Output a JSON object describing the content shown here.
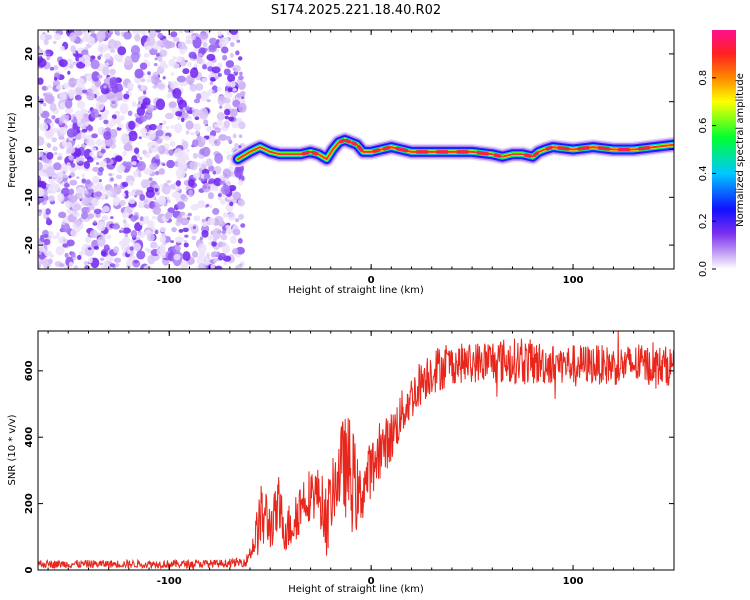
{
  "title": "S174.2025.221.18.40.R02",
  "colors": {
    "snr_line": "#e8261c",
    "axis": "#000000"
  },
  "chart_data": [
    {
      "type": "heatmap",
      "name": "spectrogram",
      "xlabel": "Height of straight line (km)",
      "ylabel": "Frequency (Hz)",
      "xlim": [
        -165,
        150
      ],
      "ylim": [
        -25,
        25
      ],
      "xticks": [
        -100,
        0,
        100
      ],
      "yticks": [
        -20,
        -10,
        0,
        10,
        20
      ],
      "colorbar": {
        "label": "Normalized spectral amplitude",
        "range": [
          0,
          1
        ],
        "ticks": [
          "0.0",
          "0.2",
          "0.4",
          "0.6",
          "0.8"
        ],
        "colormap": [
          "#ffffff",
          "#c9a9f5",
          "#7a2ef0",
          "#1010ff",
          "#00c8ff",
          "#00ff30",
          "#ffff00",
          "#ff8800",
          "#ff2020",
          "#ff1090"
        ]
      },
      "noise_region_km": [
        -165,
        -65
      ],
      "peak_track": {
        "height_km": [
          -66,
          -60,
          -55,
          -50,
          -45,
          -40,
          -35,
          -30,
          -26,
          -22,
          -19,
          -16,
          -13,
          -10,
          -7,
          -4,
          0,
          5,
          10,
          20,
          30,
          40,
          50,
          60,
          65,
          70,
          75,
          80,
          83,
          86,
          90,
          100,
          110,
          120,
          130,
          140,
          150
        ],
        "frequency_hz": [
          -2,
          -0.5,
          0.5,
          -0.5,
          -1,
          -1,
          -1,
          -0.5,
          -1,
          -2,
          0,
          1.5,
          2,
          1.5,
          1,
          -0.5,
          -0.5,
          0,
          0.5,
          -0.5,
          -0.5,
          -0.5,
          -0.5,
          -1,
          -1.5,
          -1,
          -1,
          -1.5,
          -0.5,
          0,
          0.5,
          0,
          0.5,
          0,
          0,
          0.5,
          1
        ],
        "amplitude": [
          0.3,
          0.5,
          0.6,
          0.75,
          0.8,
          0.85,
          0.9,
          0.9,
          0.7,
          0.5,
          0.8,
          0.95,
          0.95,
          0.9,
          0.9,
          0.85,
          0.9,
          0.9,
          0.9,
          0.92,
          0.92,
          0.92,
          0.92,
          0.92,
          0.9,
          0.9,
          0.9,
          0.92,
          0.92,
          0.95,
          0.95,
          0.95,
          0.95,
          0.95,
          0.95,
          0.9,
          0.85
        ]
      }
    },
    {
      "type": "line",
      "name": "snr",
      "xlabel": "Height of straight line (km)",
      "ylabel": "SNR (10 * v/v)",
      "xlim": [
        -165,
        150
      ],
      "ylim": [
        0,
        720
      ],
      "xticks": [
        -100,
        0,
        100
      ],
      "yticks": [
        0,
        200,
        400,
        600
      ],
      "series": [
        {
          "name": "SNR",
          "x": [
            -165,
            -150,
            -130,
            -110,
            -90,
            -70,
            -62,
            -58,
            -55,
            -52,
            -50,
            -46,
            -42,
            -38,
            -34,
            -30,
            -26,
            -22,
            -18,
            -14,
            -10,
            -6,
            -2,
            2,
            6,
            10,
            15,
            20,
            25,
            30,
            35,
            40,
            50,
            60,
            70,
            80,
            90,
            100,
            110,
            120,
            130,
            140,
            150
          ],
          "mean": [
            18,
            18,
            18,
            18,
            18,
            20,
            25,
            80,
            150,
            160,
            130,
            180,
            120,
            150,
            210,
            230,
            230,
            150,
            260,
            320,
            290,
            210,
            280,
            330,
            370,
            400,
            470,
            520,
            570,
            600,
            610,
            620,
            625,
            630,
            630,
            625,
            620,
            620,
            620,
            615,
            620,
            615,
            615
          ],
          "amp": [
            12,
            12,
            12,
            12,
            12,
            12,
            15,
            40,
            110,
            90,
            70,
            90,
            70,
            80,
            80,
            80,
            80,
            110,
            100,
            140,
            180,
            100,
            90,
            80,
            80,
            80,
            70,
            70,
            70,
            70,
            70,
            60,
            60,
            70,
            70,
            70,
            60,
            60,
            60,
            60,
            60,
            60,
            60
          ]
        }
      ]
    }
  ]
}
